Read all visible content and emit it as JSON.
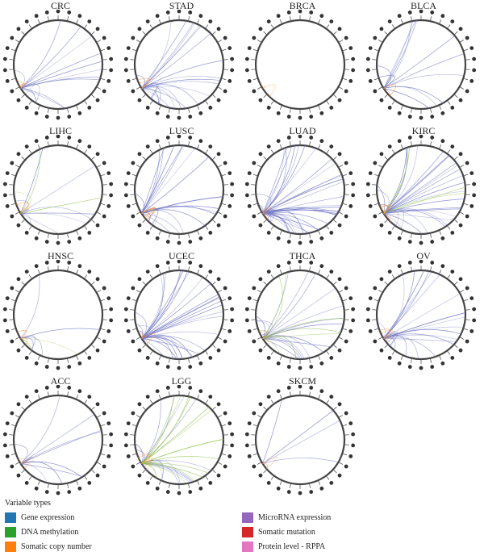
{
  "panels": [
    {
      "title": "CRC",
      "arcs": [
        {
          "type": "gene_expression",
          "count": 14
        },
        {
          "type": "somatic_copy_number",
          "count": 3
        }
      ]
    },
    {
      "title": "STAD",
      "arcs": [
        {
          "type": "gene_expression",
          "count": 22
        },
        {
          "type": "somatic_copy_number",
          "count": 3
        }
      ]
    },
    {
      "title": "BRCA",
      "arcs": [
        {
          "type": "somatic_copy_number",
          "count": 2
        }
      ]
    },
    {
      "title": "BLCA",
      "arcs": [
        {
          "type": "gene_expression",
          "count": 12
        },
        {
          "type": "somatic_copy_number",
          "count": 2
        }
      ]
    },
    {
      "title": "LIHC",
      "arcs": [
        {
          "type": "gene_expression",
          "count": 10
        },
        {
          "type": "dna_methylation",
          "count": 3
        },
        {
          "type": "somatic_copy_number",
          "count": 3
        }
      ]
    },
    {
      "title": "LUSC",
      "arcs": [
        {
          "type": "gene_expression",
          "count": 24
        },
        {
          "type": "somatic_copy_number",
          "count": 4
        }
      ]
    },
    {
      "title": "LUAD",
      "arcs": [
        {
          "type": "gene_expression",
          "count": 40
        },
        {
          "type": "somatic_copy_number",
          "count": 3
        }
      ]
    },
    {
      "title": "KIRC",
      "arcs": [
        {
          "type": "gene_expression",
          "count": 28
        },
        {
          "type": "dna_methylation",
          "count": 4
        },
        {
          "type": "somatic_copy_number",
          "count": 5
        }
      ]
    },
    {
      "title": "HNSC",
      "arcs": [
        {
          "type": "gene_expression",
          "count": 5
        },
        {
          "type": "dna_methylation",
          "count": 2
        },
        {
          "type": "somatic_copy_number",
          "count": 2
        }
      ]
    },
    {
      "title": "UCEC",
      "arcs": [
        {
          "type": "gene_expression",
          "count": 34
        },
        {
          "type": "somatic_copy_number",
          "count": 3
        }
      ]
    },
    {
      "title": "THCA",
      "arcs": [
        {
          "type": "gene_expression",
          "count": 18
        },
        {
          "type": "dna_methylation",
          "count": 8
        },
        {
          "type": "somatic_copy_number",
          "count": 3
        }
      ]
    },
    {
      "title": "OV",
      "arcs": [
        {
          "type": "gene_expression",
          "count": 26
        },
        {
          "type": "somatic_copy_number",
          "count": 3
        }
      ]
    },
    {
      "title": "ACC",
      "arcs": [
        {
          "type": "gene_expression",
          "count": 10
        },
        {
          "type": "somatic_copy_number",
          "count": 3
        }
      ]
    },
    {
      "title": "LGG",
      "arcs": [
        {
          "type": "gene_expression",
          "count": 14
        },
        {
          "type": "dna_methylation",
          "count": 16
        },
        {
          "type": "somatic_copy_number",
          "count": 4
        }
      ]
    },
    {
      "title": "SKCM",
      "arcs": [
        {
          "type": "gene_expression",
          "count": 4
        },
        {
          "type": "somatic_copy_number",
          "count": 2
        }
      ]
    }
  ],
  "legend": {
    "heading": "Variable types",
    "items": [
      {
        "key": "gene_expression",
        "label": "Gene expression",
        "color": "#2077b4"
      },
      {
        "key": "dna_methylation",
        "label": "DNA methylation",
        "color": "#2ca02c"
      },
      {
        "key": "somatic_copy_number",
        "label": "Somatic copy number",
        "color": "#ff7f0e"
      },
      {
        "key": "microrna_expression",
        "label": "MicroRNA expression",
        "color": "#9467bd"
      },
      {
        "key": "somatic_mutation",
        "label": "Somatic mutation",
        "color": "#d62728"
      },
      {
        "key": "protein_level",
        "label": "Protein level - RPPA",
        "color": "#e377c2"
      }
    ]
  },
  "arc_colors": {
    "gene_expression": "#6f74c4",
    "dna_methylation": "#8fbf4a",
    "somatic_copy_number": "#ff9a3c"
  }
}
